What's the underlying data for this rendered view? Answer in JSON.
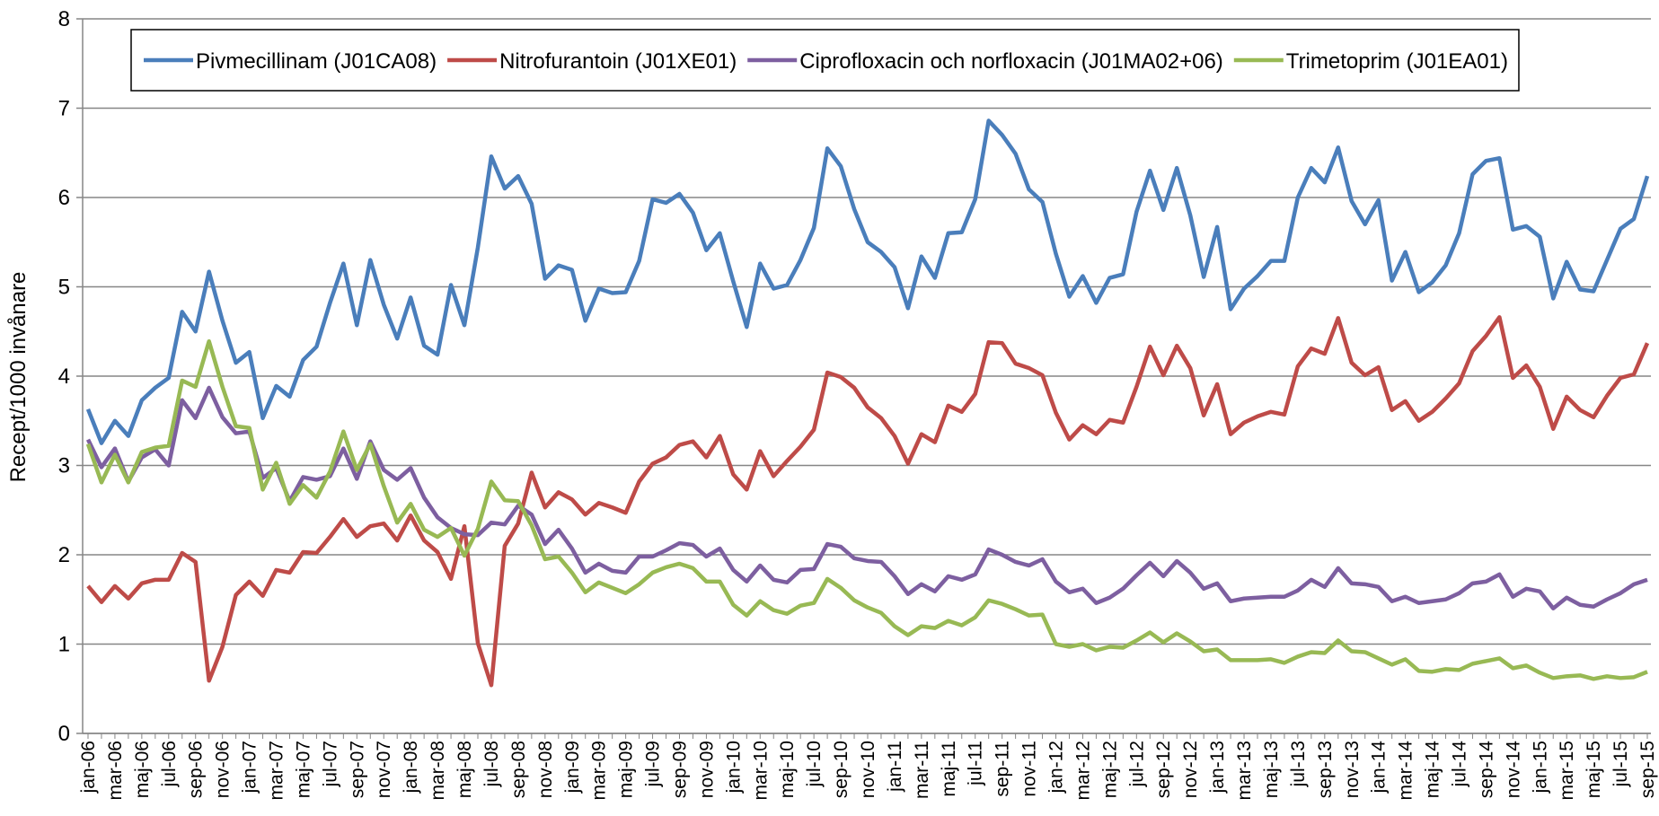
{
  "chart_data": {
    "type": "line",
    "ylabel": "Recept/1000 invånare",
    "categories": [
      "jan-06",
      null,
      "mar-06",
      null,
      "maj-06",
      null,
      "jul-06",
      null,
      "sep-06",
      null,
      "nov-06",
      null,
      "jan-07",
      null,
      "mar-07",
      null,
      "maj-07",
      null,
      "jul-07",
      null,
      "sep-07",
      null,
      "nov-07",
      null,
      "jan-08",
      null,
      "mar-08",
      null,
      "maj-08",
      null,
      "jul-08",
      null,
      "sep-08",
      null,
      "nov-08",
      null,
      "jan-09",
      null,
      "mar-09",
      null,
      "maj-09",
      null,
      "jul-09",
      null,
      "sep-09",
      null,
      "nov-09",
      null,
      "jan-10",
      null,
      "mar-10",
      null,
      "maj-10",
      null,
      "jul-10",
      null,
      "sep-10",
      null,
      "nov-10",
      null,
      "jan-11",
      null,
      "mar-11",
      null,
      "maj-11",
      null,
      "jul-11",
      null,
      "sep-11",
      null,
      "nov-11",
      null,
      "jan-12",
      null,
      "mar-12",
      null,
      "maj-12",
      null,
      "jul-12",
      null,
      "sep-12",
      null,
      "nov-12",
      null,
      "jan-13",
      null,
      "mar-13",
      null,
      "maj-13",
      null,
      "jul-13",
      null,
      "sep-13",
      null,
      "nov-13",
      null,
      "jan-14",
      null,
      "mar-14",
      null,
      "maj-14",
      null,
      "jul-14",
      null,
      "sep-14",
      null,
      "nov-14",
      null,
      "jan-15",
      null,
      "mar-15",
      null,
      "maj-15",
      null,
      "jul-15",
      null,
      "sep-15"
    ],
    "series": [
      {
        "name": "Pivmecillinam (J01CA08)",
        "color": "#4a7ebb",
        "values": [
          3.63,
          3.25,
          3.5,
          3.33,
          3.73,
          3.87,
          3.98,
          4.72,
          4.5,
          5.17,
          4.62,
          4.15,
          4.27,
          3.53,
          3.89,
          3.77,
          4.18,
          4.33,
          4.82,
          5.26,
          4.57,
          5.3,
          4.8,
          4.42,
          4.88,
          4.34,
          4.24,
          5.02,
          4.57,
          5.44,
          6.46,
          6.1,
          6.24,
          5.93,
          5.09,
          5.24,
          5.19,
          4.62,
          4.98,
          4.93,
          4.94,
          5.29,
          5.98,
          5.94,
          6.04,
          5.83,
          5.41,
          5.6,
          5.06,
          4.55,
          5.26,
          4.98,
          5.02,
          5.3,
          5.66,
          6.55,
          6.35,
          5.87,
          5.5,
          5.39,
          5.22,
          4.76,
          5.34,
          5.1,
          5.6,
          5.61,
          5.98,
          6.86,
          6.7,
          6.49,
          6.09,
          5.95,
          5.37,
          4.89,
          5.12,
          4.82,
          5.1,
          5.14,
          5.84,
          6.3,
          5.86,
          6.33,
          5.8,
          5.11,
          5.67,
          4.75,
          4.98,
          5.12,
          5.29,
          5.29,
          6.0,
          6.33,
          6.17,
          6.56,
          5.96,
          5.7,
          5.97,
          5.07,
          5.39,
          4.94,
          5.05,
          5.24,
          5.6,
          6.26,
          6.41,
          6.44,
          5.64,
          5.68,
          5.56,
          4.87,
          5.28,
          4.97,
          4.95,
          5.3,
          5.65,
          5.76,
          6.24
        ]
      },
      {
        "name": "Nitrofurantoin (J01XE01)",
        "color": "#be4b48",
        "values": [
          1.65,
          1.47,
          1.65,
          1.51,
          1.68,
          1.72,
          1.72,
          2.02,
          1.92,
          0.59,
          0.97,
          1.55,
          1.7,
          1.54,
          1.83,
          1.8,
          2.03,
          2.02,
          2.2,
          2.4,
          2.2,
          2.32,
          2.35,
          2.16,
          2.44,
          2.16,
          2.03,
          1.73,
          2.32,
          1.01,
          0.54,
          2.1,
          2.35,
          2.92,
          2.53,
          2.7,
          2.62,
          2.45,
          2.58,
          2.53,
          2.47,
          2.82,
          3.02,
          3.09,
          3.23,
          3.27,
          3.09,
          3.33,
          2.9,
          2.73,
          3.16,
          2.88,
          3.05,
          3.21,
          3.4,
          4.04,
          3.99,
          3.87,
          3.65,
          3.53,
          3.33,
          3.02,
          3.35,
          3.26,
          3.67,
          3.6,
          3.8,
          4.38,
          4.37,
          4.14,
          4.09,
          4.01,
          3.59,
          3.29,
          3.45,
          3.35,
          3.51,
          3.48,
          3.88,
          4.33,
          4.01,
          4.34,
          4.09,
          3.56,
          3.91,
          3.35,
          3.48,
          3.55,
          3.6,
          3.57,
          4.11,
          4.31,
          4.25,
          4.65,
          4.15,
          4.01,
          4.1,
          3.62,
          3.72,
          3.5,
          3.6,
          3.75,
          3.92,
          4.28,
          4.45,
          4.66,
          3.98,
          4.12,
          3.88,
          3.41,
          3.77,
          3.62,
          3.54,
          3.78,
          3.98,
          4.02,
          4.37
        ]
      },
      {
        "name": "Ciprofloxacin och norfloxacin (J01MA02+06)",
        "color": "#7d5fa0",
        "values": [
          3.29,
          2.98,
          3.19,
          2.82,
          3.09,
          3.18,
          3.0,
          3.73,
          3.53,
          3.87,
          3.54,
          3.36,
          3.38,
          2.86,
          2.97,
          2.6,
          2.87,
          2.84,
          2.88,
          3.19,
          2.85,
          3.27,
          2.95,
          2.84,
          2.97,
          2.64,
          2.42,
          2.3,
          2.23,
          2.22,
          2.36,
          2.34,
          2.55,
          2.45,
          2.12,
          2.28,
          2.07,
          1.8,
          1.9,
          1.82,
          1.8,
          1.98,
          1.98,
          2.05,
          2.13,
          2.11,
          1.98,
          2.07,
          1.83,
          1.7,
          1.88,
          1.72,
          1.69,
          1.83,
          1.84,
          2.12,
          2.09,
          1.96,
          1.93,
          1.92,
          1.76,
          1.56,
          1.67,
          1.59,
          1.76,
          1.72,
          1.78,
          2.06,
          2.0,
          1.92,
          1.88,
          1.95,
          1.7,
          1.58,
          1.62,
          1.46,
          1.52,
          1.62,
          1.77,
          1.91,
          1.76,
          1.93,
          1.8,
          1.62,
          1.68,
          1.48,
          1.51,
          1.52,
          1.53,
          1.53,
          1.6,
          1.72,
          1.64,
          1.85,
          1.68,
          1.67,
          1.64,
          1.48,
          1.53,
          1.46,
          1.48,
          1.5,
          1.57,
          1.68,
          1.7,
          1.78,
          1.53,
          1.62,
          1.59,
          1.4,
          1.52,
          1.44,
          1.42,
          1.5,
          1.57,
          1.67,
          1.72
        ]
      },
      {
        "name": "Trimetoprim (J01EA01)",
        "color": "#98b954",
        "values": [
          3.24,
          2.81,
          3.12,
          2.81,
          3.15,
          3.2,
          3.22,
          3.95,
          3.88,
          4.39,
          3.88,
          3.44,
          3.42,
          2.73,
          3.03,
          2.57,
          2.78,
          2.64,
          2.93,
          3.38,
          2.95,
          3.24,
          2.77,
          2.36,
          2.57,
          2.28,
          2.2,
          2.3,
          1.99,
          2.29,
          2.82,
          2.61,
          2.6,
          2.33,
          1.95,
          1.98,
          1.8,
          1.58,
          1.69,
          1.63,
          1.57,
          1.67,
          1.8,
          1.86,
          1.9,
          1.85,
          1.7,
          1.7,
          1.44,
          1.32,
          1.48,
          1.38,
          1.34,
          1.43,
          1.46,
          1.73,
          1.63,
          1.49,
          1.41,
          1.35,
          1.2,
          1.1,
          1.2,
          1.18,
          1.26,
          1.21,
          1.3,
          1.49,
          1.45,
          1.39,
          1.32,
          1.33,
          1.0,
          0.97,
          1.0,
          0.93,
          0.97,
          0.96,
          1.04,
          1.13,
          1.02,
          1.12,
          1.03,
          0.92,
          0.94,
          0.82,
          0.82,
          0.82,
          0.83,
          0.79,
          0.86,
          0.91,
          0.9,
          1.04,
          0.92,
          0.91,
          0.84,
          0.77,
          0.83,
          0.7,
          0.69,
          0.72,
          0.71,
          0.78,
          0.81,
          0.84,
          0.73,
          0.76,
          0.68,
          0.62,
          0.64,
          0.65,
          0.61,
          0.64,
          0.62,
          0.63,
          0.69
        ]
      }
    ],
    "ylim": [
      0,
      8
    ],
    "yticks": [
      0,
      1,
      2,
      3,
      4,
      5,
      6,
      7,
      8
    ],
    "grid": true,
    "legend": "top"
  }
}
